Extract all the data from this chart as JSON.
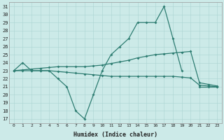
{
  "title": "",
  "xlabel": "Humidex (Indice chaleur)",
  "x": [
    0,
    1,
    2,
    3,
    4,
    5,
    6,
    7,
    8,
    9,
    10,
    11,
    12,
    13,
    14,
    15,
    16,
    17,
    18,
    19,
    20,
    21,
    22,
    23
  ],
  "line1": [
    23,
    24,
    23,
    23,
    23,
    22,
    21,
    18,
    17,
    20,
    23,
    25,
    26,
    27,
    29,
    29,
    29,
    31,
    27,
    23,
    null,
    21,
    21,
    21
  ],
  "line2": [
    23,
    23.1,
    23.2,
    23.3,
    23.4,
    23.5,
    23.5,
    23.5,
    23.5,
    23.6,
    23.7,
    23.9,
    24.1,
    24.3,
    24.6,
    24.8,
    25.0,
    25.1,
    25.2,
    25.3,
    25.4,
    21.5,
    21.3,
    21.1
  ],
  "line3": [
    23,
    23,
    23,
    23,
    23,
    22.9,
    22.8,
    22.7,
    22.6,
    22.5,
    22.4,
    22.3,
    22.3,
    22.3,
    22.3,
    22.3,
    22.3,
    22.3,
    22.3,
    22.2,
    22.1,
    21.2,
    21.1,
    21.0
  ],
  "bg_color": "#cceae8",
  "grid_color": "#aad4d2",
  "line_color": "#2e7d72",
  "ylim_min": 16.5,
  "ylim_max": 31.5,
  "yticks": [
    17,
    18,
    19,
    20,
    21,
    22,
    23,
    24,
    25,
    26,
    27,
    28,
    29,
    30,
    31
  ],
  "xticks": [
    0,
    1,
    2,
    3,
    4,
    5,
    6,
    7,
    8,
    9,
    10,
    11,
    12,
    13,
    14,
    15,
    16,
    17,
    18,
    19,
    20,
    21,
    22,
    23
  ],
  "tick_fontsize": 5,
  "xlabel_fontsize": 6,
  "lw": 0.9,
  "marker_size": 2.0
}
